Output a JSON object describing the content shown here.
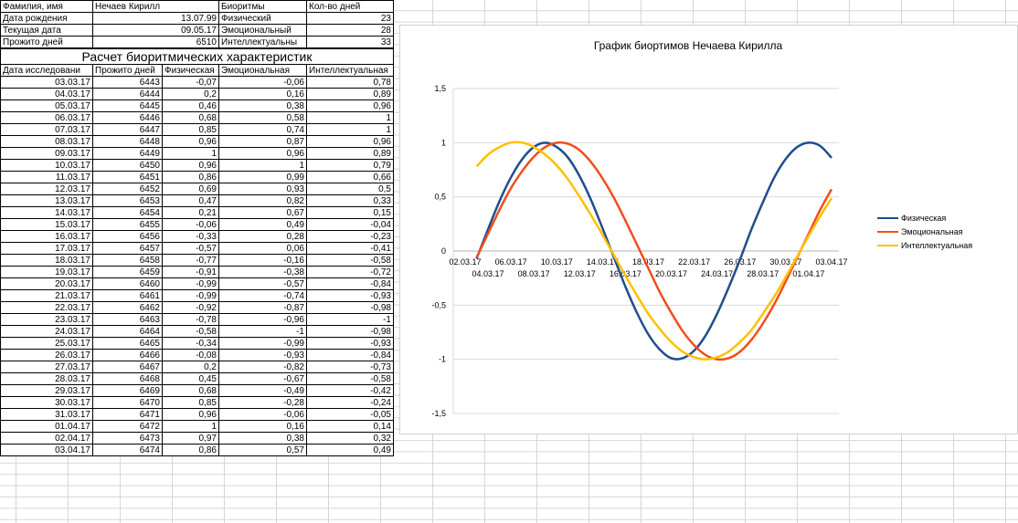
{
  "info_rows": [
    {
      "label": "Фамилия, имя",
      "value": "Нечаев Кирилл",
      "right_label": "Биоритмы",
      "right_value": "Кол-во дней"
    },
    {
      "label": "Дата рождения",
      "value": "13.07.99",
      "right_label": "Физический",
      "right_value": "23"
    },
    {
      "label": "Текущая дата",
      "value": "09.05.17",
      "right_label": "Эмоциональный",
      "right_value": "28"
    },
    {
      "label": "Прожито дней",
      "value": "6510",
      "right_label": "Интеллектуальны",
      "right_value": "33"
    }
  ],
  "table_title": "Расчет биоритмических характеристик",
  "columns": [
    "Дата исследовани",
    "Прожито дней",
    "Физическая",
    "Эмоциональная",
    "Интеллектуальная"
  ],
  "rows": [
    [
      "03.03.17",
      "6443",
      "-0,07",
      "-0,06",
      "0,78"
    ],
    [
      "04.03.17",
      "6444",
      "0,2",
      "0,16",
      "0,89"
    ],
    [
      "05.03.17",
      "6445",
      "0,46",
      "0,38",
      "0,96"
    ],
    [
      "06.03.17",
      "6446",
      "0,68",
      "0,58",
      "1"
    ],
    [
      "07.03.17",
      "6447",
      "0,85",
      "0,74",
      "1"
    ],
    [
      "08.03.17",
      "6448",
      "0,96",
      "0,87",
      "0,96"
    ],
    [
      "09.03.17",
      "6449",
      "1",
      "0,96",
      "0,89"
    ],
    [
      "10.03.17",
      "6450",
      "0,96",
      "1",
      "0,79"
    ],
    [
      "11.03.17",
      "6451",
      "0,86",
      "0,99",
      "0,66"
    ],
    [
      "12.03.17",
      "6452",
      "0,69",
      "0,93",
      "0,5"
    ],
    [
      "13.03.17",
      "6453",
      "0,47",
      "0,82",
      "0,33"
    ],
    [
      "14.03.17",
      "6454",
      "0,21",
      "0,67",
      "0,15"
    ],
    [
      "15.03.17",
      "6455",
      "-0,06",
      "0,49",
      "-0,04"
    ],
    [
      "16.03.17",
      "6456",
      "-0,33",
      "0,28",
      "-0,23"
    ],
    [
      "17.03.17",
      "6457",
      "-0,57",
      "0,06",
      "-0,41"
    ],
    [
      "18.03.17",
      "6458",
      "-0,77",
      "-0,16",
      "-0,58"
    ],
    [
      "19.03.17",
      "6459",
      "-0,91",
      "-0,38",
      "-0,72"
    ],
    [
      "20.03.17",
      "6460",
      "-0,99",
      "-0,57",
      "-0,84"
    ],
    [
      "21.03.17",
      "6461",
      "-0,99",
      "-0,74",
      "-0,93"
    ],
    [
      "22.03.17",
      "6462",
      "-0,92",
      "-0,87",
      "-0,98"
    ],
    [
      "23.03.17",
      "6463",
      "-0,78",
      "-0,96",
      "-1"
    ],
    [
      "24.03.17",
      "6464",
      "-0,58",
      "-1",
      "-0,98"
    ],
    [
      "25.03.17",
      "6465",
      "-0,34",
      "-0,99",
      "-0,93"
    ],
    [
      "26.03.17",
      "6466",
      "-0,08",
      "-0,93",
      "-0,84"
    ],
    [
      "27.03.17",
      "6467",
      "0,2",
      "-0,82",
      "-0,73"
    ],
    [
      "28.03.17",
      "6468",
      "0,45",
      "-0,67",
      "-0,58"
    ],
    [
      "29.03.17",
      "6469",
      "0,68",
      "-0,49",
      "-0,42"
    ],
    [
      "30.03.17",
      "6470",
      "0,85",
      "-0,28",
      "-0,24"
    ],
    [
      "31.03.17",
      "6471",
      "0,96",
      "-0,06",
      "-0,05"
    ],
    [
      "01.04.17",
      "6472",
      "1",
      "0,16",
      "0,14"
    ],
    [
      "02.04.17",
      "6473",
      "0,97",
      "0,38",
      "0,32"
    ],
    [
      "03.04.17",
      "6474",
      "0,86",
      "0,57",
      "0,49"
    ]
  ],
  "chart_data": {
    "type": "line",
    "title": "График биортимов Нечаева Кирилла",
    "xlabel": "",
    "ylabel": "",
    "ylim": [
      -1.5,
      1.5
    ],
    "yticks": [
      "1,5",
      "1",
      "0,5",
      "0",
      "-0,5",
      "-1",
      "-1,5"
    ],
    "x_tick_labels_upper": [
      "02.03.17",
      "06.03.17",
      "10.03.17",
      "14.03.17",
      "18.03.17",
      "22.03.17",
      "26.03.17",
      "30.03.17",
      "03.04.17"
    ],
    "x_tick_labels_lower": [
      "04.03.17",
      "08.03.17",
      "12.03.17",
      "16.03.17",
      "20.03.17",
      "24.03.17",
      "28.03.17",
      "01.04.17"
    ],
    "x": [
      "03.03.17",
      "04.03.17",
      "05.03.17",
      "06.03.17",
      "07.03.17",
      "08.03.17",
      "09.03.17",
      "10.03.17",
      "11.03.17",
      "12.03.17",
      "13.03.17",
      "14.03.17",
      "15.03.17",
      "16.03.17",
      "17.03.17",
      "18.03.17",
      "19.03.17",
      "20.03.17",
      "21.03.17",
      "22.03.17",
      "23.03.17",
      "24.03.17",
      "25.03.17",
      "26.03.17",
      "27.03.17",
      "28.03.17",
      "29.03.17",
      "30.03.17",
      "31.03.17",
      "01.04.17",
      "02.04.17",
      "03.04.17"
    ],
    "legend_position": "right",
    "grid": true,
    "series": [
      {
        "name": "Физическая",
        "color": "#1f4e8c",
        "values": [
          -0.07,
          0.2,
          0.46,
          0.68,
          0.85,
          0.96,
          1,
          0.96,
          0.86,
          0.69,
          0.47,
          0.21,
          -0.06,
          -0.33,
          -0.57,
          -0.77,
          -0.91,
          -0.99,
          -0.99,
          -0.92,
          -0.78,
          -0.58,
          -0.34,
          -0.08,
          0.2,
          0.45,
          0.68,
          0.85,
          0.96,
          1,
          0.97,
          0.86
        ]
      },
      {
        "name": "Эмоциональная",
        "color": "#f04e1e",
        "values": [
          -0.06,
          0.16,
          0.38,
          0.58,
          0.74,
          0.87,
          0.96,
          1,
          0.99,
          0.93,
          0.82,
          0.67,
          0.49,
          0.28,
          0.06,
          -0.16,
          -0.38,
          -0.57,
          -0.74,
          -0.87,
          -0.96,
          -1,
          -0.99,
          -0.93,
          -0.82,
          -0.67,
          -0.49,
          -0.28,
          -0.06,
          0.16,
          0.38,
          0.57
        ]
      },
      {
        "name": "Интеллектуальная",
        "color": "#ffc000",
        "values": [
          0.78,
          0.89,
          0.96,
          1,
          1,
          0.96,
          0.89,
          0.79,
          0.66,
          0.5,
          0.33,
          0.15,
          -0.04,
          -0.23,
          -0.41,
          -0.58,
          -0.72,
          -0.84,
          -0.93,
          -0.98,
          -1,
          -0.98,
          -0.93,
          -0.84,
          -0.73,
          -0.58,
          -0.42,
          -0.24,
          -0.05,
          0.14,
          0.32,
          0.49
        ]
      }
    ]
  }
}
